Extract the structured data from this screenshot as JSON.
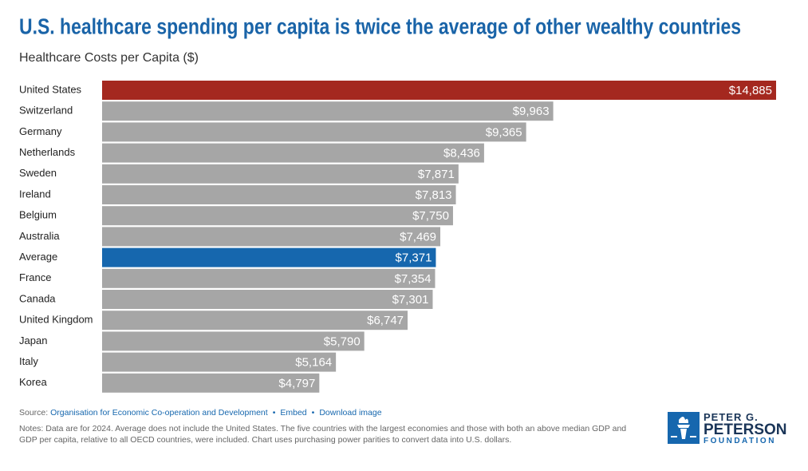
{
  "chart_data": {
    "type": "bar",
    "orientation": "horizontal",
    "title": "U.S. healthcare spending per capita is twice the average of other wealthy countries",
    "subtitle": "Healthcare Costs per Capita ($)",
    "categories": [
      "United States",
      "Switzerland",
      "Germany",
      "Netherlands",
      "Sweden",
      "Ireland",
      "Belgium",
      "Australia",
      "Average",
      "France",
      "Canada",
      "United Kingdom",
      "Japan",
      "Italy",
      "Korea"
    ],
    "values": [
      14885,
      9963,
      9365,
      8436,
      7871,
      7813,
      7750,
      7469,
      7371,
      7354,
      7301,
      6747,
      5790,
      5164,
      4797
    ],
    "value_labels": [
      "$14,885",
      "$9,963",
      "$9,365",
      "$8,436",
      "$7,871",
      "$7,813",
      "$7,750",
      "$7,469",
      "$7,371",
      "$7,354",
      "$7,301",
      "$6,747",
      "$5,790",
      "$5,164",
      "$4,797"
    ],
    "colors": [
      "#a4281f",
      "#a6a6a6",
      "#a6a6a6",
      "#a6a6a6",
      "#a6a6a6",
      "#a6a6a6",
      "#a6a6a6",
      "#a6a6a6",
      "#1667ae",
      "#a6a6a6",
      "#a6a6a6",
      "#a6a6a6",
      "#a6a6a6",
      "#a6a6a6",
      "#a6a6a6"
    ],
    "source_label": "Source:",
    "source": "Organisation for Economic Co-operation and Development",
    "links": [
      "Embed",
      "Download image"
    ],
    "notes": "Notes: Data are for 2024. Average does not include the United States. The five countries with the largest economies and those with both an above median GDP and GDP per capita, relative to all OECD countries, were included. Chart uses purchasing power parities to convert data into U.S. dollars.",
    "logo": [
      "PETER G.",
      "PETERSON",
      "FOUNDATION"
    ]
  }
}
